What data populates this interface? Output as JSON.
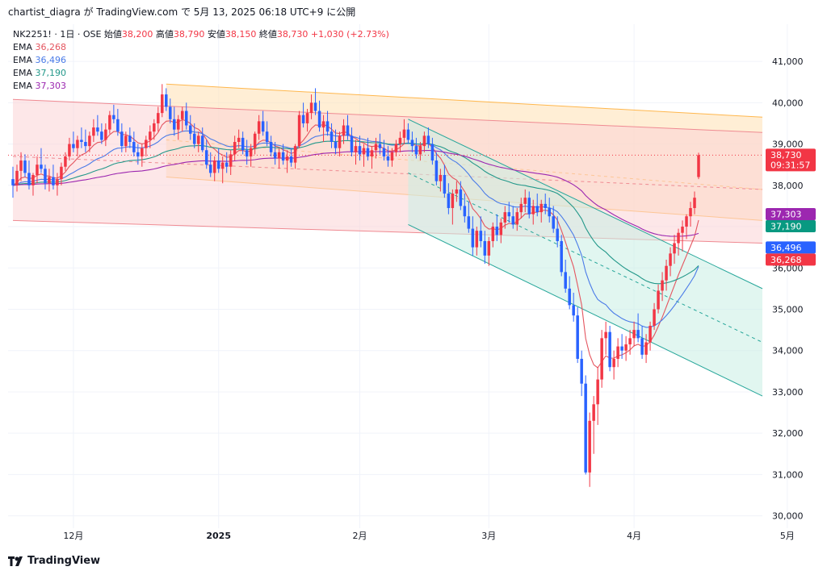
{
  "header": {
    "caption": "chartist_diagra が TradingView.com で 5月 13, 2025 06:18 UTC+9 に公開"
  },
  "footer": {
    "brand": "TradingView"
  },
  "colors": {
    "up": "#f23645",
    "down": "#2962ff",
    "ema1": "#e4555f",
    "ema2": "#4a7be8",
    "ema3": "#23988a",
    "ema4": "#9c27b0",
    "orange_channel": "#ffcc80",
    "red_channel": "#f7a8ad",
    "green_channel": "#7fd3bd"
  },
  "chart_data": {
    "type": "candlestick",
    "symbol_line": {
      "symbol": "NK2251! · 1日 · OSE",
      "open_label": "始値",
      "open": "38,200",
      "high_label": "高値",
      "high": "38,790",
      "low_label": "安値",
      "low": "38,150",
      "close_label": "終値",
      "close": "38,730",
      "change": "+1,030 (+2.73%)"
    },
    "legend": [
      {
        "label": "EMA",
        "value": "36,268",
        "color": "#e4555f"
      },
      {
        "label": "EMA",
        "value": "36,496",
        "color": "#4a7be8"
      },
      {
        "label": "EMA",
        "value": "37,190",
        "color": "#23988a"
      },
      {
        "label": "EMA",
        "value": "37,303",
        "color": "#9c27b0"
      }
    ],
    "y_ticks": [
      "41,000",
      "40,000",
      "39,000",
      "38,000",
      "37,000",
      "36,000",
      "35,000",
      "34,000",
      "33,000",
      "32,000",
      "31,000",
      "30,000"
    ],
    "y_tick_values": [
      41000,
      40000,
      39000,
      38000,
      37000,
      36000,
      35000,
      34000,
      33000,
      32000,
      31000,
      30000
    ],
    "ylim": [
      29700,
      41900
    ],
    "x_ticks": [
      {
        "label": "12月",
        "index": 15,
        "bold": false
      },
      {
        "label": "2025",
        "index": 51,
        "bold": true
      },
      {
        "label": "2月",
        "index": 86,
        "bold": false
      },
      {
        "label": "3月",
        "index": 118,
        "bold": false
      },
      {
        "label": "4月",
        "index": 154,
        "bold": false
      },
      {
        "label": "5月",
        "index": 192,
        "bold": false
      }
    ],
    "price_labels": [
      {
        "value": "38,730",
        "sub": "09:31:57",
        "price": 38730,
        "bg": "#f23645",
        "fg": "#ffffff"
      },
      {
        "value": "37,303",
        "price": 37303,
        "bg": "#9c27b0",
        "fg": "#ffffff"
      },
      {
        "value": "37,190",
        "price": 37190,
        "bg": "#089981",
        "fg": "#ffffff"
      },
      {
        "value": "36,496",
        "price": 36496,
        "bg": "#2962ff",
        "fg": "#ffffff"
      },
      {
        "value": "36,268",
        "price": 36268,
        "bg": "#f23645",
        "fg": "#ffffff"
      }
    ],
    "last_price": 38730,
    "channels": [
      {
        "name": "orange",
        "color": "#ffe0b2",
        "line": "#ffb74d",
        "x_start": 38,
        "x_end": 230,
        "upper": [
          40450,
          39650
        ],
        "mid": [
          39100,
          37900
        ],
        "lower": [
          38200,
          37150
        ]
      },
      {
        "name": "red",
        "color": "#fbd3d6",
        "line": "#ef8a92",
        "x_start": 0,
        "x_end": 230,
        "upper": [
          40080,
          39280
        ],
        "mid": [
          38700,
          37900
        ],
        "lower": [
          37150,
          36600
        ]
      },
      {
        "name": "green",
        "color": "#c9eee3",
        "line": "#26a69a",
        "x_start": 98,
        "x_end": 230,
        "upper": [
          39600,
          35500
        ],
        "mid": [
          38300,
          34200
        ],
        "lower": [
          37050,
          32900
        ]
      }
    ],
    "candles": [
      [
        38150,
        38450,
        37700,
        38000
      ],
      [
        38000,
        38500,
        37850,
        38350
      ],
      [
        38350,
        38800,
        38100,
        38600
      ],
      [
        38600,
        38750,
        38200,
        38300
      ],
      [
        38300,
        38600,
        37900,
        38000
      ],
      [
        38000,
        38300,
        37750,
        38250
      ],
      [
        38250,
        38700,
        38050,
        38500
      ],
      [
        38500,
        38900,
        38300,
        38400
      ],
      [
        38400,
        38500,
        37900,
        38050
      ],
      [
        38050,
        38400,
        37850,
        38200
      ],
      [
        38200,
        38500,
        37900,
        38000
      ],
      [
        38000,
        38300,
        37750,
        38150
      ],
      [
        38150,
        38550,
        38000,
        38450
      ],
      [
        38450,
        38800,
        38350,
        38700
      ],
      [
        38700,
        39150,
        38600,
        39000
      ],
      [
        39000,
        39300,
        38800,
        38900
      ],
      [
        38900,
        39200,
        38700,
        39100
      ],
      [
        39100,
        39400,
        38900,
        39050
      ],
      [
        39050,
        39350,
        38800,
        38950
      ],
      [
        38950,
        39300,
        38800,
        39200
      ],
      [
        39200,
        39600,
        39050,
        39400
      ],
      [
        39400,
        39700,
        39200,
        39300
      ],
      [
        39300,
        39500,
        39000,
        39100
      ],
      [
        39100,
        39500,
        38950,
        39350
      ],
      [
        39350,
        39800,
        39250,
        39700
      ],
      [
        39700,
        39950,
        39500,
        39600
      ],
      [
        39600,
        39850,
        39200,
        39300
      ],
      [
        39300,
        39500,
        38800,
        38950
      ],
      [
        38950,
        39300,
        38800,
        39200
      ],
      [
        39200,
        39400,
        38900,
        39050
      ],
      [
        39050,
        39300,
        38700,
        38800
      ],
      [
        38800,
        39000,
        38500,
        38700
      ],
      [
        38700,
        39000,
        38450,
        38900
      ],
      [
        38900,
        39200,
        38700,
        39100
      ],
      [
        39100,
        39450,
        38900,
        39300
      ],
      [
        39300,
        39600,
        39100,
        39500
      ],
      [
        39500,
        39900,
        39300,
        39750
      ],
      [
        39750,
        40450,
        39650,
        40200
      ],
      [
        40200,
        40350,
        39800,
        39900
      ],
      [
        39900,
        40100,
        39500,
        39600
      ],
      [
        39600,
        39900,
        39200,
        39350
      ],
      [
        39350,
        39700,
        39100,
        39600
      ],
      [
        39600,
        39900,
        39300,
        39800
      ],
      [
        39800,
        40000,
        39350,
        39450
      ],
      [
        39450,
        39700,
        39100,
        39250
      ],
      [
        39250,
        39500,
        38900,
        39000
      ],
      [
        39000,
        39300,
        38800,
        39200
      ],
      [
        39200,
        39400,
        38800,
        38850
      ],
      [
        38850,
        39100,
        38400,
        38500
      ],
      [
        38500,
        38800,
        38200,
        38300
      ],
      [
        38300,
        38700,
        38100,
        38600
      ],
      [
        38600,
        38900,
        38300,
        38400
      ],
      [
        38400,
        38700,
        38050,
        38550
      ],
      [
        38550,
        38800,
        38300,
        38450
      ],
      [
        38450,
        38850,
        38250,
        38750
      ],
      [
        38750,
        39200,
        38600,
        39050
      ],
      [
        39050,
        39350,
        38900,
        39150
      ],
      [
        39150,
        39300,
        38750,
        38850
      ],
      [
        38850,
        39100,
        38500,
        38700
      ],
      [
        38700,
        39000,
        38450,
        38900
      ],
      [
        38900,
        39300,
        38750,
        39250
      ],
      [
        39250,
        39700,
        39100,
        39550
      ],
      [
        39550,
        39800,
        39200,
        39300
      ],
      [
        39300,
        39550,
        38950,
        39050
      ],
      [
        39050,
        39200,
        38700,
        38800
      ],
      [
        38800,
        39050,
        38500,
        38650
      ],
      [
        38650,
        38900,
        38400,
        38800
      ],
      [
        38800,
        39000,
        38500,
        38600
      ],
      [
        38600,
        38850,
        38300,
        38700
      ],
      [
        38700,
        38900,
        38450,
        38550
      ],
      [
        38550,
        39000,
        38400,
        38950
      ],
      [
        38950,
        39800,
        38900,
        39700
      ],
      [
        39700,
        40000,
        39400,
        39500
      ],
      [
        39500,
        39850,
        39300,
        39750
      ],
      [
        39750,
        40200,
        39600,
        40000
      ],
      [
        40000,
        40350,
        39700,
        39800
      ],
      [
        39800,
        40050,
        39300,
        39400
      ],
      [
        39400,
        39700,
        39050,
        39550
      ],
      [
        39550,
        39800,
        39200,
        39300
      ],
      [
        39300,
        39500,
        38900,
        39050
      ],
      [
        39050,
        39350,
        38750,
        38900
      ],
      [
        38900,
        39300,
        38700,
        39200
      ],
      [
        39200,
        39600,
        39000,
        39450
      ],
      [
        39450,
        39700,
        39100,
        39200
      ],
      [
        39200,
        39400,
        38700,
        38800
      ],
      [
        38800,
        39100,
        38500,
        38950
      ],
      [
        38950,
        39200,
        38600,
        38750
      ],
      [
        38750,
        39000,
        38450,
        38900
      ],
      [
        38900,
        39150,
        38600,
        38700
      ],
      [
        38700,
        38950,
        38400,
        38850
      ],
      [
        38850,
        39150,
        38650,
        39000
      ],
      [
        39000,
        39250,
        38750,
        38900
      ],
      [
        38900,
        39100,
        38600,
        38700
      ],
      [
        38700,
        38950,
        38450,
        38600
      ],
      [
        38600,
        38900,
        38450,
        38800
      ],
      [
        38800,
        39100,
        38700,
        39000
      ],
      [
        39000,
        39300,
        38800,
        39150
      ],
      [
        39150,
        39600,
        39000,
        39350
      ],
      [
        39350,
        39500,
        39000,
        39100
      ],
      [
        39100,
        39300,
        38800,
        38950
      ],
      [
        38950,
        39150,
        38650,
        38750
      ],
      [
        38750,
        39050,
        38600,
        38950
      ],
      [
        38950,
        39300,
        38800,
        39200
      ],
      [
        39200,
        39400,
        38900,
        39000
      ],
      [
        39000,
        39150,
        38500,
        38600
      ],
      [
        38600,
        38800,
        38000,
        38100
      ],
      [
        38100,
        38400,
        37850,
        38250
      ],
      [
        38250,
        38500,
        37700,
        37800
      ],
      [
        37800,
        38050,
        37300,
        37450
      ],
      [
        37450,
        37900,
        37050,
        37800
      ],
      [
        37800,
        38100,
        37600,
        37900
      ],
      [
        37900,
        38100,
        37400,
        37500
      ],
      [
        37500,
        37800,
        37100,
        37250
      ],
      [
        37250,
        37600,
        36850,
        36950
      ],
      [
        36950,
        37250,
        36300,
        36500
      ],
      [
        36500,
        37000,
        36300,
        36900
      ],
      [
        36900,
        37250,
        36500,
        36650
      ],
      [
        36650,
        36900,
        36100,
        36300
      ],
      [
        36300,
        36750,
        36050,
        36650
      ],
      [
        36650,
        37100,
        36500,
        37000
      ],
      [
        37000,
        37300,
        36650,
        36800
      ],
      [
        36800,
        37200,
        36600,
        37100
      ],
      [
        37100,
        37500,
        36950,
        37350
      ],
      [
        37350,
        37600,
        37100,
        37250
      ],
      [
        37250,
        37500,
        36950,
        37050
      ],
      [
        37050,
        37450,
        36900,
        37350
      ],
      [
        37350,
        37700,
        37200,
        37550
      ],
      [
        37550,
        37900,
        37350,
        37700
      ],
      [
        37700,
        37850,
        37200,
        37300
      ],
      [
        37300,
        37650,
        37050,
        37500
      ],
      [
        37500,
        37800,
        37250,
        37350
      ],
      [
        37350,
        37650,
        37100,
        37550
      ],
      [
        37550,
        37800,
        37300,
        37450
      ],
      [
        37450,
        37700,
        37100,
        37250
      ],
      [
        37250,
        37500,
        36850,
        36950
      ],
      [
        36950,
        37250,
        36500,
        36650
      ],
      [
        36650,
        36800,
        35800,
        35900
      ],
      [
        35900,
        36200,
        35400,
        35500
      ],
      [
        35500,
        35800,
        35000,
        35100
      ],
      [
        35100,
        35400,
        34700,
        34850
      ],
      [
        34850,
        35050,
        33700,
        33800
      ],
      [
        33800,
        34000,
        32900,
        33200
      ],
      [
        33200,
        33400,
        31000,
        31050
      ],
      [
        31050,
        32500,
        30700,
        32300
      ],
      [
        32300,
        32900,
        31500,
        32700
      ],
      [
        32700,
        33600,
        32200,
        33300
      ],
      [
        33300,
        34500,
        33100,
        34300
      ],
      [
        34300,
        34700,
        33900,
        34450
      ],
      [
        34450,
        34600,
        33500,
        33600
      ],
      [
        33600,
        34000,
        33300,
        33800
      ],
      [
        33800,
        34300,
        33600,
        34100
      ],
      [
        34100,
        34400,
        33800,
        34000
      ],
      [
        34000,
        34350,
        33750,
        34150
      ],
      [
        34150,
        34500,
        33900,
        34300
      ],
      [
        34300,
        34700,
        34100,
        34500
      ],
      [
        34500,
        34900,
        34200,
        34300
      ],
      [
        34300,
        34600,
        33800,
        33900
      ],
      [
        33900,
        34400,
        33700,
        34200
      ],
      [
        34200,
        34700,
        34000,
        34600
      ],
      [
        34600,
        35150,
        34500,
        35000
      ],
      [
        35000,
        35600,
        34900,
        35450
      ],
      [
        35450,
        35900,
        35200,
        35700
      ],
      [
        35700,
        36200,
        35450,
        36050
      ],
      [
        36050,
        36500,
        35800,
        36350
      ],
      [
        36350,
        36800,
        36100,
        36600
      ],
      [
        36600,
        36950,
        36300,
        36850
      ],
      [
        36850,
        37150,
        36400,
        37000
      ],
      [
        37000,
        37300,
        36700,
        37250
      ],
      [
        37250,
        37600,
        37000,
        37450
      ],
      [
        37450,
        37850,
        37300,
        37700
      ],
      [
        38200,
        38790,
        38150,
        38730
      ]
    ]
  }
}
